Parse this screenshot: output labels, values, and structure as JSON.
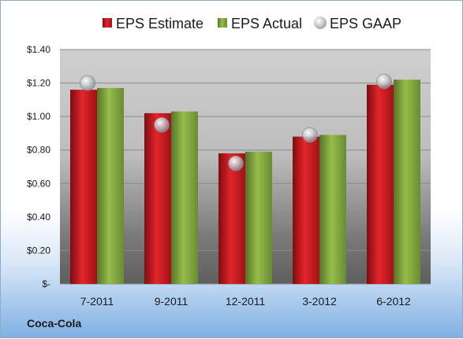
{
  "company": "Coca-Cola",
  "colors": {
    "estimate": "#c0161c",
    "actual": "#7ea33a",
    "gaap": "#b9bdc2"
  },
  "chart_data": {
    "type": "bar",
    "categories": [
      "7-2011",
      "9-2011",
      "12-2011",
      "3-2012",
      "6-2012"
    ],
    "series": [
      {
        "name": "EPS Estimate",
        "values": [
          1.16,
          1.02,
          0.78,
          0.88,
          1.19
        ]
      },
      {
        "name": "EPS Actual",
        "values": [
          1.17,
          1.03,
          0.79,
          0.89,
          1.22
        ]
      },
      {
        "name": "EPS GAAP",
        "marker": "bubble",
        "values": [
          1.2,
          0.95,
          0.72,
          0.89,
          1.21
        ]
      }
    ],
    "ylim": [
      0,
      1.4
    ],
    "yticks": [
      0,
      0.2,
      0.4,
      0.6,
      0.8,
      1.0,
      1.2,
      1.4
    ],
    "ytick_labels": [
      "$-",
      "$0.20",
      "$0.40",
      "$0.60",
      "$0.80",
      "$1.00",
      "$1.20",
      "$1.40"
    ],
    "grid": true,
    "legend": "top"
  }
}
